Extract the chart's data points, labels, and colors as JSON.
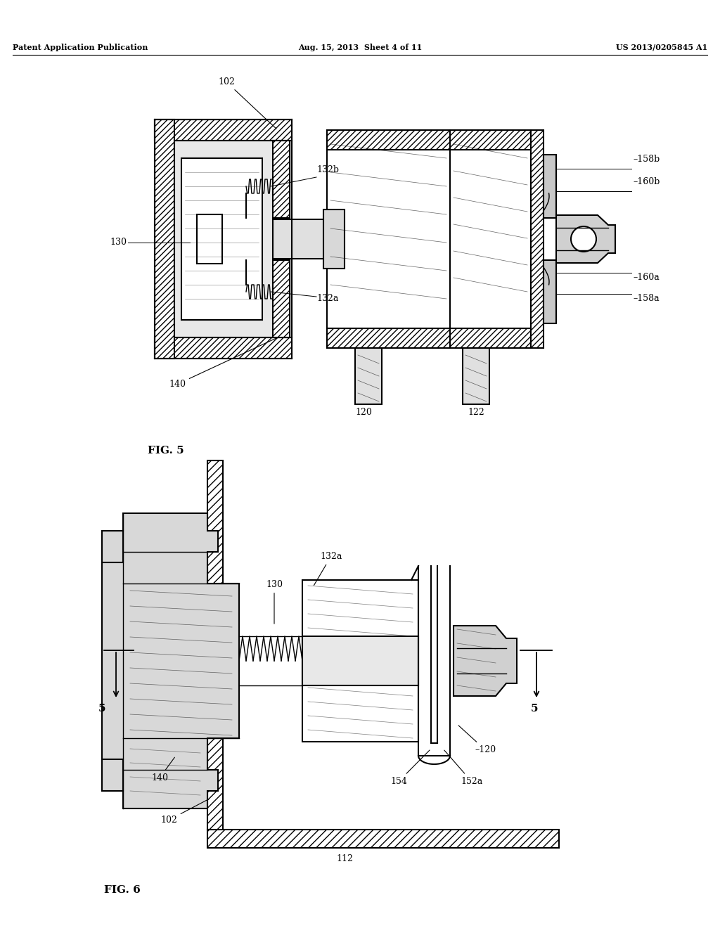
{
  "page_width": 10.24,
  "page_height": 13.2,
  "bg_color": "#ffffff",
  "header_left": "Patent Application Publication",
  "header_center": "Aug. 15, 2013  Sheet 4 of 11",
  "header_right": "US 2013/0205845 A1",
  "fig5_label": "FIG. 5",
  "fig6_label": "FIG. 6",
  "line_color": "#000000"
}
